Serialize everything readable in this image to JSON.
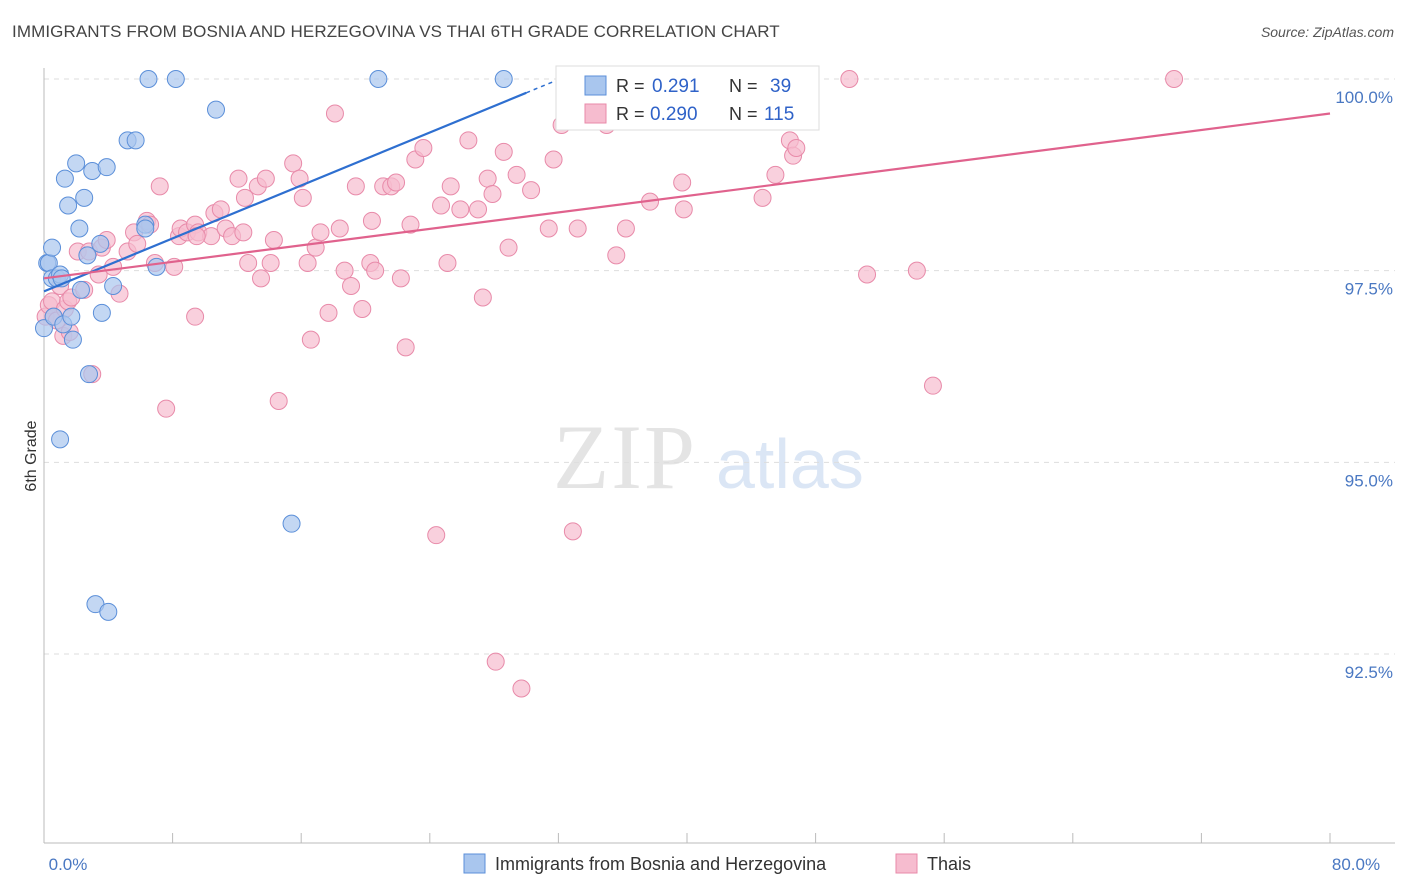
{
  "header": {
    "title": "IMMIGRANTS FROM BOSNIA AND HERZEGOVINA VS THAI 6TH GRADE CORRELATION CHART",
    "source": "Source: ZipAtlas.com"
  },
  "watermark": {
    "zip": "ZIP",
    "atlas": "atlas"
  },
  "legend_box": {
    "rows": [
      {
        "r_label": "R =",
        "r_value": "0.291",
        "n_label": "N =",
        "n_value": "39"
      },
      {
        "r_label": "R =",
        "r_value": "0.290",
        "n_label": "N =",
        "n_value": "115"
      }
    ]
  },
  "colors": {
    "blue_fill": "#a9c6ee",
    "blue_stroke": "#5b8fd9",
    "blue_line": "#2e6fd0",
    "pink_fill": "#f6bccf",
    "pink_stroke": "#e88aa9",
    "pink_line": "#e0628d",
    "tick_text": "#4a78c2",
    "grid": "#dddddd"
  },
  "chart_data": {
    "type": "scatter",
    "title": "IMMIGRANTS FROM BOSNIA AND HERZEGOVINA VS THAI 6TH GRADE CORRELATION CHART",
    "xlabel": "",
    "ylabel": "6th Grade",
    "xlim": [
      0,
      80
    ],
    "ylim": [
      90.0,
      100.4
    ],
    "x_tick_labels": [
      "0.0%",
      "80.0%"
    ],
    "y_ticks": [
      {
        "value": 100.0,
        "label": "100.0%"
      },
      {
        "value": 97.5,
        "label": "97.5%"
      },
      {
        "value": 95.0,
        "label": "95.0%"
      },
      {
        "value": 92.5,
        "label": "92.5%"
      }
    ],
    "grid": "horizontal dashed",
    "legend_position": "top-center",
    "series": [
      {
        "name": "Immigrants from Bosnia and Herzegovina",
        "color": "blue",
        "r": 0.291,
        "n": 39,
        "trend": {
          "x": [
            0.0,
            30.0
          ],
          "y": [
            97.23,
            99.82
          ]
        },
        "points": [
          [
            0.0,
            96.75
          ],
          [
            0.2,
            97.6
          ],
          [
            0.3,
            97.6
          ],
          [
            0.5,
            97.8
          ],
          [
            0.5,
            97.4
          ],
          [
            0.6,
            96.9
          ],
          [
            0.8,
            97.4
          ],
          [
            1.0,
            97.45
          ],
          [
            1.1,
            97.4
          ],
          [
            1.2,
            96.8
          ],
          [
            1.3,
            98.7
          ],
          [
            1.5,
            98.35
          ],
          [
            1.7,
            96.9
          ],
          [
            1.8,
            96.6
          ],
          [
            2.0,
            98.9
          ],
          [
            2.2,
            98.05
          ],
          [
            2.3,
            97.25
          ],
          [
            2.5,
            98.45
          ],
          [
            2.7,
            97.7
          ],
          [
            2.8,
            96.15
          ],
          [
            3.0,
            98.8
          ],
          [
            3.2,
            93.15
          ],
          [
            3.5,
            97.85
          ],
          [
            3.6,
            96.95
          ],
          [
            3.9,
            98.85
          ],
          [
            4.0,
            93.05
          ],
          [
            4.3,
            97.3
          ],
          [
            5.2,
            99.2
          ],
          [
            5.7,
            99.2
          ],
          [
            6.3,
            98.1
          ],
          [
            6.3,
            98.05
          ],
          [
            7.0,
            97.55
          ],
          [
            6.5,
            100.0
          ],
          [
            8.2,
            100.0
          ],
          [
            10.7,
            99.6
          ],
          [
            15.4,
            94.2
          ],
          [
            20.8,
            100.0
          ],
          [
            28.6,
            100.0
          ],
          [
            1.0,
            95.3
          ]
        ]
      },
      {
        "name": "Thais",
        "color": "pink",
        "r": 0.29,
        "n": 115,
        "trend": {
          "x": [
            0.0,
            80.0
          ],
          "y": [
            97.4,
            99.55
          ]
        },
        "points": [
          [
            0.1,
            96.9
          ],
          [
            0.3,
            97.05
          ],
          [
            0.5,
            97.1
          ],
          [
            0.6,
            96.9
          ],
          [
            0.8,
            96.85
          ],
          [
            1.0,
            97.3
          ],
          [
            1.2,
            96.65
          ],
          [
            1.3,
            97.0
          ],
          [
            1.5,
            97.1
          ],
          [
            1.7,
            97.15
          ],
          [
            2.1,
            97.75
          ],
          [
            2.5,
            97.25
          ],
          [
            2.8,
            97.75
          ],
          [
            3.0,
            96.15
          ],
          [
            3.4,
            97.45
          ],
          [
            3.6,
            97.8
          ],
          [
            3.9,
            97.9
          ],
          [
            4.3,
            97.55
          ],
          [
            4.7,
            97.2
          ],
          [
            5.2,
            97.75
          ],
          [
            5.6,
            98.0
          ],
          [
            5.8,
            97.85
          ],
          [
            6.4,
            98.15
          ],
          [
            6.6,
            98.1
          ],
          [
            6.9,
            97.6
          ],
          [
            7.2,
            98.6
          ],
          [
            7.6,
            95.7
          ],
          [
            8.1,
            97.55
          ],
          [
            8.4,
            97.95
          ],
          [
            8.5,
            98.05
          ],
          [
            8.9,
            98.0
          ],
          [
            9.4,
            98.1
          ],
          [
            9.6,
            98.0
          ],
          [
            9.4,
            96.9
          ],
          [
            10.4,
            97.95
          ],
          [
            10.6,
            98.25
          ],
          [
            11.0,
            98.3
          ],
          [
            11.3,
            98.05
          ],
          [
            11.7,
            97.95
          ],
          [
            12.1,
            98.7
          ],
          [
            12.4,
            98.0
          ],
          [
            12.5,
            98.45
          ],
          [
            12.7,
            97.6
          ],
          [
            13.3,
            98.6
          ],
          [
            13.5,
            97.4
          ],
          [
            13.8,
            98.7
          ],
          [
            14.1,
            97.6
          ],
          [
            14.3,
            97.9
          ],
          [
            15.5,
            98.9
          ],
          [
            15.9,
            98.7
          ],
          [
            16.1,
            98.45
          ],
          [
            16.4,
            97.6
          ],
          [
            16.6,
            96.6
          ],
          [
            16.9,
            97.8
          ],
          [
            17.2,
            98.0
          ],
          [
            17.7,
            96.95
          ],
          [
            18.1,
            99.55
          ],
          [
            18.4,
            98.05
          ],
          [
            18.7,
            97.5
          ],
          [
            19.1,
            97.3
          ],
          [
            19.4,
            98.6
          ],
          [
            19.8,
            97.0
          ],
          [
            20.3,
            97.6
          ],
          [
            20.4,
            98.15
          ],
          [
            20.6,
            97.5
          ],
          [
            21.1,
            98.6
          ],
          [
            21.6,
            98.6
          ],
          [
            21.9,
            98.65
          ],
          [
            22.2,
            97.4
          ],
          [
            22.5,
            96.5
          ],
          [
            22.8,
            98.1
          ],
          [
            23.1,
            98.95
          ],
          [
            23.6,
            99.1
          ],
          [
            24.4,
            94.05
          ],
          [
            24.7,
            98.35
          ],
          [
            25.1,
            97.6
          ],
          [
            25.3,
            98.6
          ],
          [
            25.9,
            98.3
          ],
          [
            26.4,
            99.2
          ],
          [
            27.0,
            98.3
          ],
          [
            27.3,
            97.15
          ],
          [
            27.6,
            98.7
          ],
          [
            27.9,
            98.5
          ],
          [
            28.1,
            92.4
          ],
          [
            28.6,
            99.05
          ],
          [
            28.9,
            97.8
          ],
          [
            29.4,
            98.75
          ],
          [
            29.7,
            92.05
          ],
          [
            30.3,
            98.55
          ],
          [
            31.4,
            98.05
          ],
          [
            31.7,
            98.95
          ],
          [
            32.2,
            99.4
          ],
          [
            32.9,
            94.1
          ],
          [
            33.2,
            98.05
          ],
          [
            33.5,
            100.0
          ],
          [
            35.0,
            99.4
          ],
          [
            35.6,
            97.7
          ],
          [
            36.2,
            98.05
          ],
          [
            37.7,
            98.4
          ],
          [
            38.6,
            100.0
          ],
          [
            39.7,
            98.65
          ],
          [
            39.8,
            98.3
          ],
          [
            44.7,
            98.45
          ],
          [
            45.5,
            98.75
          ],
          [
            46.4,
            99.2
          ],
          [
            46.6,
            99.0
          ],
          [
            46.8,
            99.1
          ],
          [
            50.1,
            100.0
          ],
          [
            51.2,
            97.45
          ],
          [
            54.3,
            97.5
          ],
          [
            55.3,
            96.0
          ],
          [
            70.3,
            100.0
          ],
          [
            33.7,
            99.6
          ],
          [
            9.5,
            97.95
          ],
          [
            14.6,
            95.8
          ],
          [
            1.6,
            96.7
          ]
        ]
      }
    ]
  },
  "bottom_legend": {
    "items": [
      {
        "label": "Immigrants from Bosnia and Herzegovina"
      },
      {
        "label": "Thais"
      }
    ]
  }
}
